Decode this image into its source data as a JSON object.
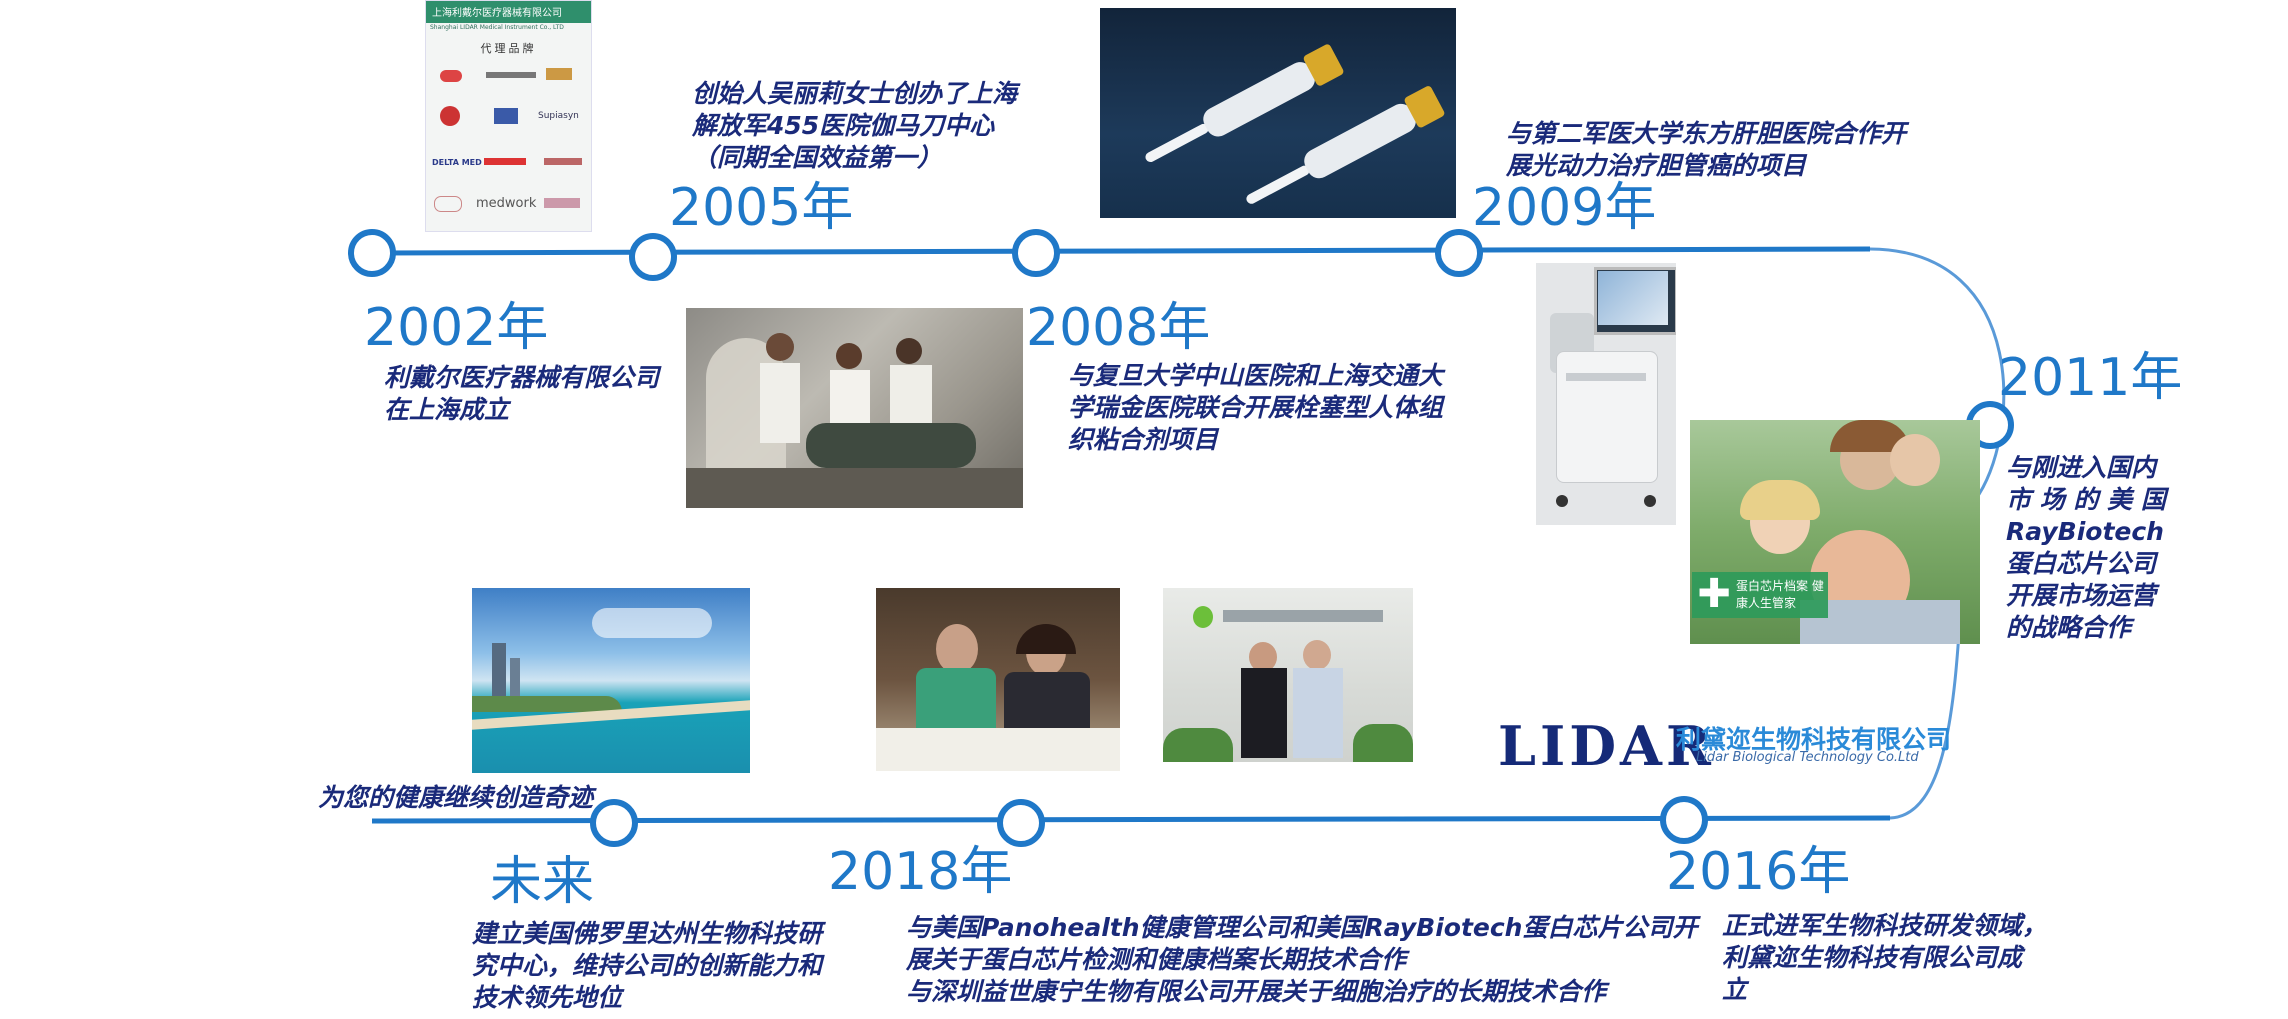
{
  "colors": {
    "line": "#1f78c8",
    "year": "#1f78c8",
    "desc": "#1a2a7a",
    "logo": "#152a78",
    "logo_accent": "#2a8ad8"
  },
  "milestones": [
    {
      "year": "2002年",
      "lines": [
        "利戴尔医疗器械有限公司",
        "在上海成立"
      ]
    },
    {
      "year": "2005年",
      "lines": [
        "创始人吴丽莉女士创办了上海",
        "解放军455医院伽马刀中心",
        "（同期全国效益第一）"
      ]
    },
    {
      "year": "2008年",
      "lines": [
        "与复旦大学中山医院和上海交通大",
        "学瑞金医院联合开展栓塞型人体组",
        "织粘合剂项目"
      ]
    },
    {
      "year": "2009年",
      "lines": [
        "与第二军医大学东方肝胆医院合作开",
        "展光动力治疗胆管癌的项目"
      ]
    },
    {
      "year": "2011年",
      "lines": [
        "与刚进入国内",
        "市 场 的 美 国",
        "RayBiotech",
        "蛋白芯片公司",
        "开展市场运营",
        "的战略合作"
      ]
    },
    {
      "year": "2016年",
      "lines": [
        "正式进军生物科技研发领域，",
        "利黛迩生物科技有限公司成",
        "立"
      ]
    },
    {
      "year": "2018年",
      "lines": [
        "与美国Panohealth健康管理公司和美国RayBiotech蛋白芯片公司开",
        "展关于蛋白芯片检测和健康档案长期技术合作",
        "与深圳益世康宁生物有限公司开展关于细胞治疗的长期技术合作"
      ]
    },
    {
      "year": "未来",
      "lines": [
        "建立美国佛罗里达州生物科技研",
        "究中心，维持公司的创新能力和",
        "技术领先地位"
      ]
    }
  ],
  "slogan": "为您的健康继续创造奇迹",
  "logo": {
    "mark": "LIDAR",
    "name_cn": "利黛迩生物科技有限公司",
    "name_en": "Lidar Biological Technology Co.Ltd"
  },
  "photos": {
    "brand_sheet": {
      "header": "上海利戴尔医疗器械有限公司",
      "subheader": "Shanghai LIDAR Medical Instrument Co., LTD",
      "title": "代理品牌",
      "brands": [
        "Supiasyn",
        "DELTA MED",
        "medwork"
      ]
    },
    "sign": "蛋白芯片档案 健康人生管家"
  }
}
